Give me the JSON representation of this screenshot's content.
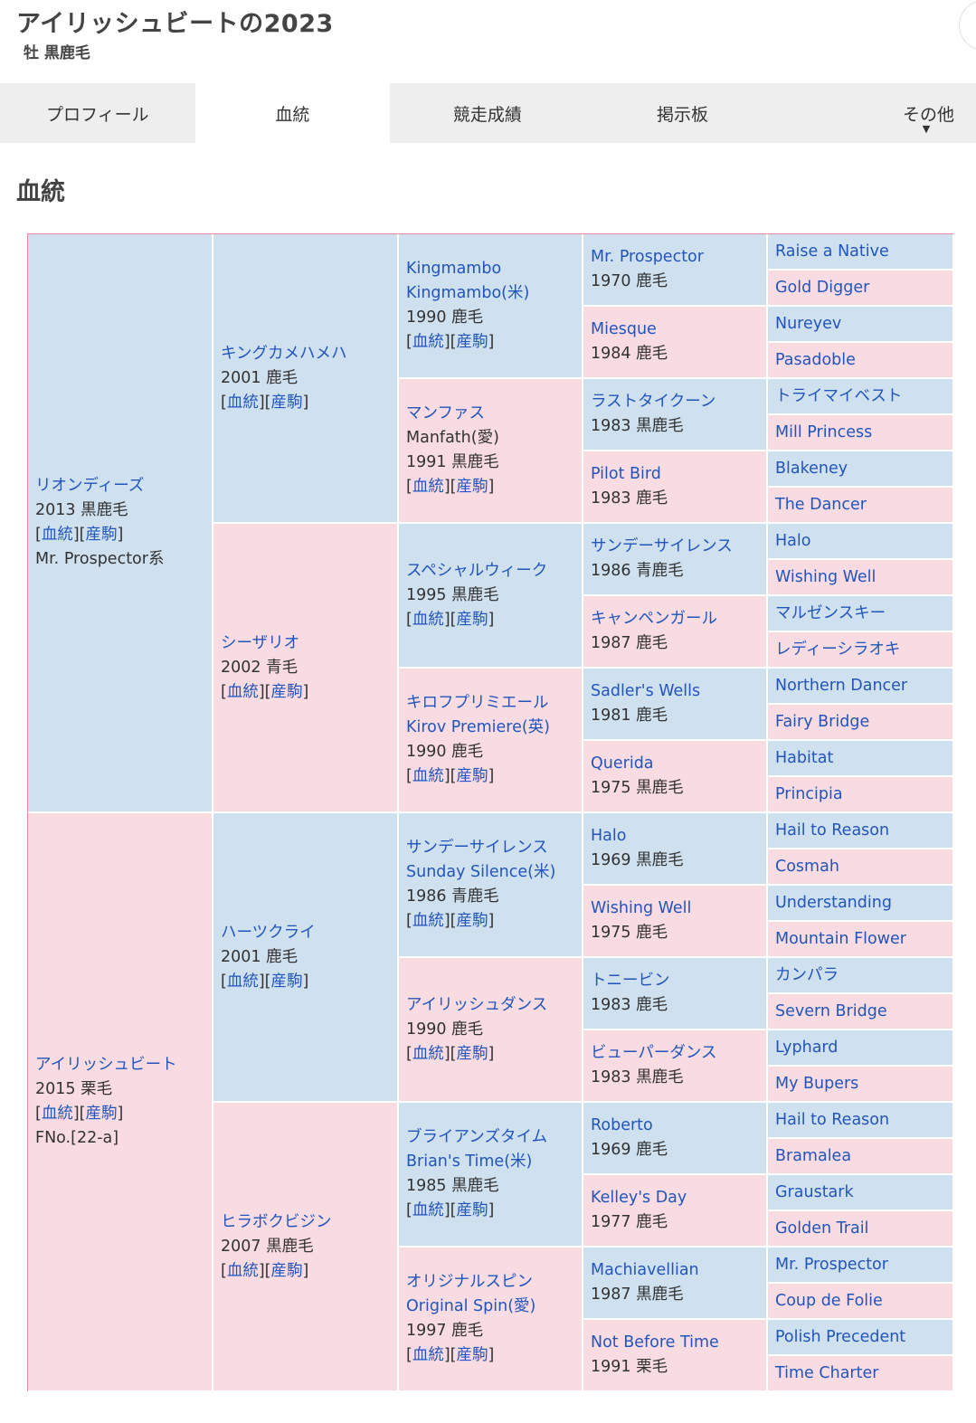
{
  "horse": {
    "title": "アイリッシュビートの2023",
    "subtitle": "牡 黒鹿毛"
  },
  "tabs": [
    {
      "label": "プロフィール",
      "active": false
    },
    {
      "label": "血統",
      "active": true
    },
    {
      "label": "競走成績",
      "active": false
    },
    {
      "label": "掲示板",
      "active": false
    },
    {
      "label": "その他",
      "active": false,
      "arrow": "▼"
    }
  ],
  "section_title": "血統",
  "links": {
    "pedigree": "血統",
    "progeny": "産駒"
  },
  "colors": {
    "male": "#cfe0ef",
    "female": "#f9dbe2",
    "link": "#2255bb"
  },
  "gen1": [
    {
      "name": "リオンディーズ",
      "info": "2013 黒鹿毛",
      "extra": "Mr. Prospector系"
    },
    {
      "name": "アイリッシュビート",
      "info": "2015 栗毛",
      "extra": "FNo.[22-a]"
    }
  ],
  "gen2": [
    {
      "name": "キングカメハメハ",
      "info": "2001 鹿毛"
    },
    {
      "name": "シーザリオ",
      "info": "2002 青毛"
    },
    {
      "name": "ハーツクライ",
      "info": "2001 鹿毛"
    },
    {
      "name": "ヒラボクビジン",
      "info": "2007 黒鹿毛"
    }
  ],
  "gen3": [
    {
      "name": "Kingmambo",
      "alt": "Kingmambo(米)",
      "info": "1990 鹿毛"
    },
    {
      "name": "マンファス",
      "alt": "Manfath(愛)",
      "info": "1991 黒鹿毛",
      "alt_plain": true
    },
    {
      "name": "スペシャルウィーク",
      "alt": "",
      "info": "1995 黒鹿毛"
    },
    {
      "name": "キロフプリミエール",
      "alt": "Kirov Premiere(英)",
      "info": "1990 鹿毛"
    },
    {
      "name": "サンデーサイレンス",
      "alt": "Sunday Silence(米)",
      "info": "1986 青鹿毛"
    },
    {
      "name": "アイリッシュダンス",
      "alt": "",
      "info": "1990 鹿毛"
    },
    {
      "name": "ブライアンズタイム",
      "alt": "Brian's Time(米)",
      "info": "1985 黒鹿毛"
    },
    {
      "name": "オリジナルスピン",
      "alt": "Original Spin(愛)",
      "info": "1997 鹿毛"
    }
  ],
  "gen4": [
    {
      "name": "Mr. Prospector",
      "info": "1970 鹿毛"
    },
    {
      "name": "Miesque",
      "info": "1984 鹿毛"
    },
    {
      "name": "ラストタイクーン",
      "info": "1983 黒鹿毛"
    },
    {
      "name": "Pilot Bird",
      "info": "1983 鹿毛"
    },
    {
      "name": "サンデーサイレンス",
      "info": "1986 青鹿毛"
    },
    {
      "name": "キャンペンガール",
      "info": "1987 鹿毛"
    },
    {
      "name": "Sadler's Wells",
      "info": "1981 鹿毛"
    },
    {
      "name": "Querida",
      "info": "1975 黒鹿毛"
    },
    {
      "name": "Halo",
      "info": "1969 黒鹿毛"
    },
    {
      "name": "Wishing Well",
      "info": "1975 鹿毛"
    },
    {
      "name": "トニービン",
      "info": "1983 鹿毛"
    },
    {
      "name": "ビューパーダンス",
      "info": "1983 黒鹿毛"
    },
    {
      "name": "Roberto",
      "info": "1969 鹿毛"
    },
    {
      "name": "Kelley's Day",
      "info": "1977 鹿毛"
    },
    {
      "name": "Machiavellian",
      "info": "1987 黒鹿毛"
    },
    {
      "name": "Not Before Time",
      "info": "1991 栗毛"
    }
  ],
  "gen5": [
    "Raise a Native",
    "Gold Digger",
    "Nureyev",
    "Pasadoble",
    "トライマイベスト",
    "Mill Princess",
    "Blakeney",
    "The Dancer",
    "Halo",
    "Wishing Well",
    "マルゼンスキー",
    "レディーシラオキ",
    "Northern Dancer",
    "Fairy Bridge",
    "Habitat",
    "Principia",
    "Hail to Reason",
    "Cosmah",
    "Understanding",
    "Mountain Flower",
    "カンパラ",
    "Severn Bridge",
    "Lyphard",
    "My Bupers",
    "Hail to Reason",
    "Bramalea",
    "Graustark",
    "Golden Trail",
    "Mr. Prospector",
    "Coup de Folie",
    "Polish Precedent",
    "Time Charter"
  ]
}
